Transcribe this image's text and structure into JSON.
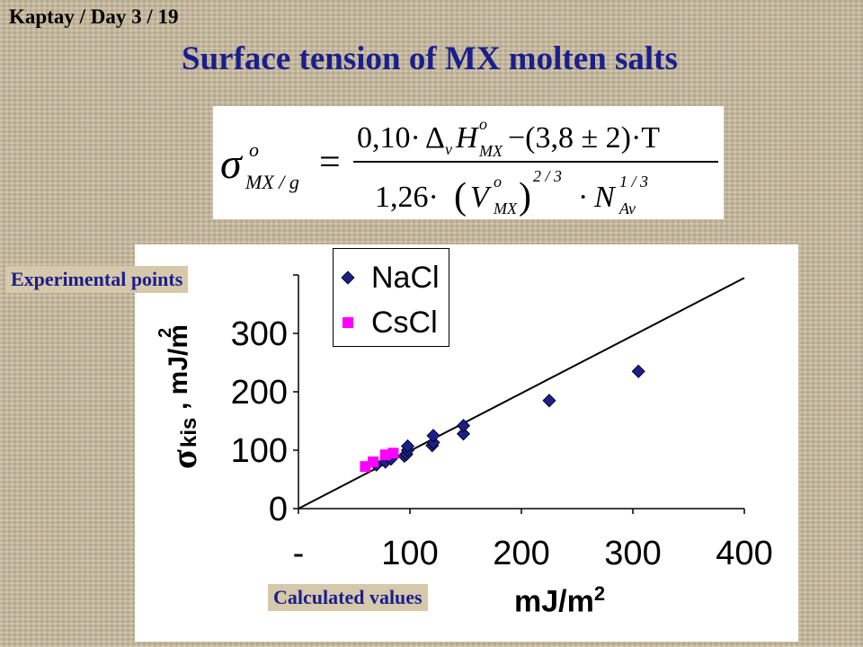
{
  "header": {
    "ref": "Kaptay / Day 3 / 19",
    "title": "Surface tension of MX molten salts"
  },
  "annotations": {
    "experimental": "Experimental points",
    "calculated": "Calculated values"
  },
  "formula": {
    "lhs_sigma": "σ",
    "lhs_sup": "o",
    "lhs_sub": "MX / g",
    "equals": "=",
    "num_a": "0,10·",
    "num_delta": "Δ",
    "num_v": "v",
    "num_H": "H",
    "num_H_sup": "o",
    "num_H_sub": "MX",
    "num_rest": "−(3,8 ± 2)·T",
    "den_a": "1,26·",
    "den_open": "(",
    "den_V": "V",
    "den_V_sup": "o",
    "den_V_sub": "MX",
    "den_close": ")",
    "den_exp": "2 / 3",
    "den_dot": "·",
    "den_N": "N",
    "den_N_sup": "1 / 3",
    "den_N_sub": "Av"
  },
  "chart_data": {
    "type": "scatter",
    "xlim": [
      0,
      400
    ],
    "ylim": [
      0,
      400
    ],
    "x_ticks": [
      "-",
      "100",
      "200",
      "300",
      "400"
    ],
    "y_ticks": [
      "0",
      "100",
      "200",
      "300"
    ],
    "xlabel_unit": "mJ/m",
    "xlabel_unit_exp": "2",
    "ylabel_sym": "σ",
    "ylabel_sub": "kis",
    "ylabel_unit": ", mJ/m",
    "ylabel_unit_exp": "2",
    "grid": false,
    "legend_position": "top-left",
    "reference_line": {
      "from": [
        0,
        0
      ],
      "to": [
        400,
        395
      ]
    },
    "series": [
      {
        "name": "NaCl",
        "color": "#1a1f8c",
        "marker": "diamond",
        "points": [
          [
            70,
            75
          ],
          [
            78,
            80
          ],
          [
            83,
            85
          ],
          [
            95,
            90
          ],
          [
            97,
            93
          ],
          [
            98,
            100
          ],
          [
            98,
            107
          ],
          [
            120,
            108
          ],
          [
            121,
            113
          ],
          [
            121,
            125
          ],
          [
            148,
            128
          ],
          [
            148,
            142
          ],
          [
            225,
            185
          ],
          [
            305,
            235
          ]
        ]
      },
      {
        "name": "CsCl",
        "color": "#ff00ff",
        "marker": "square",
        "points": [
          [
            60,
            72
          ],
          [
            67,
            80
          ],
          [
            78,
            92
          ],
          [
            85,
            95
          ]
        ]
      }
    ]
  }
}
